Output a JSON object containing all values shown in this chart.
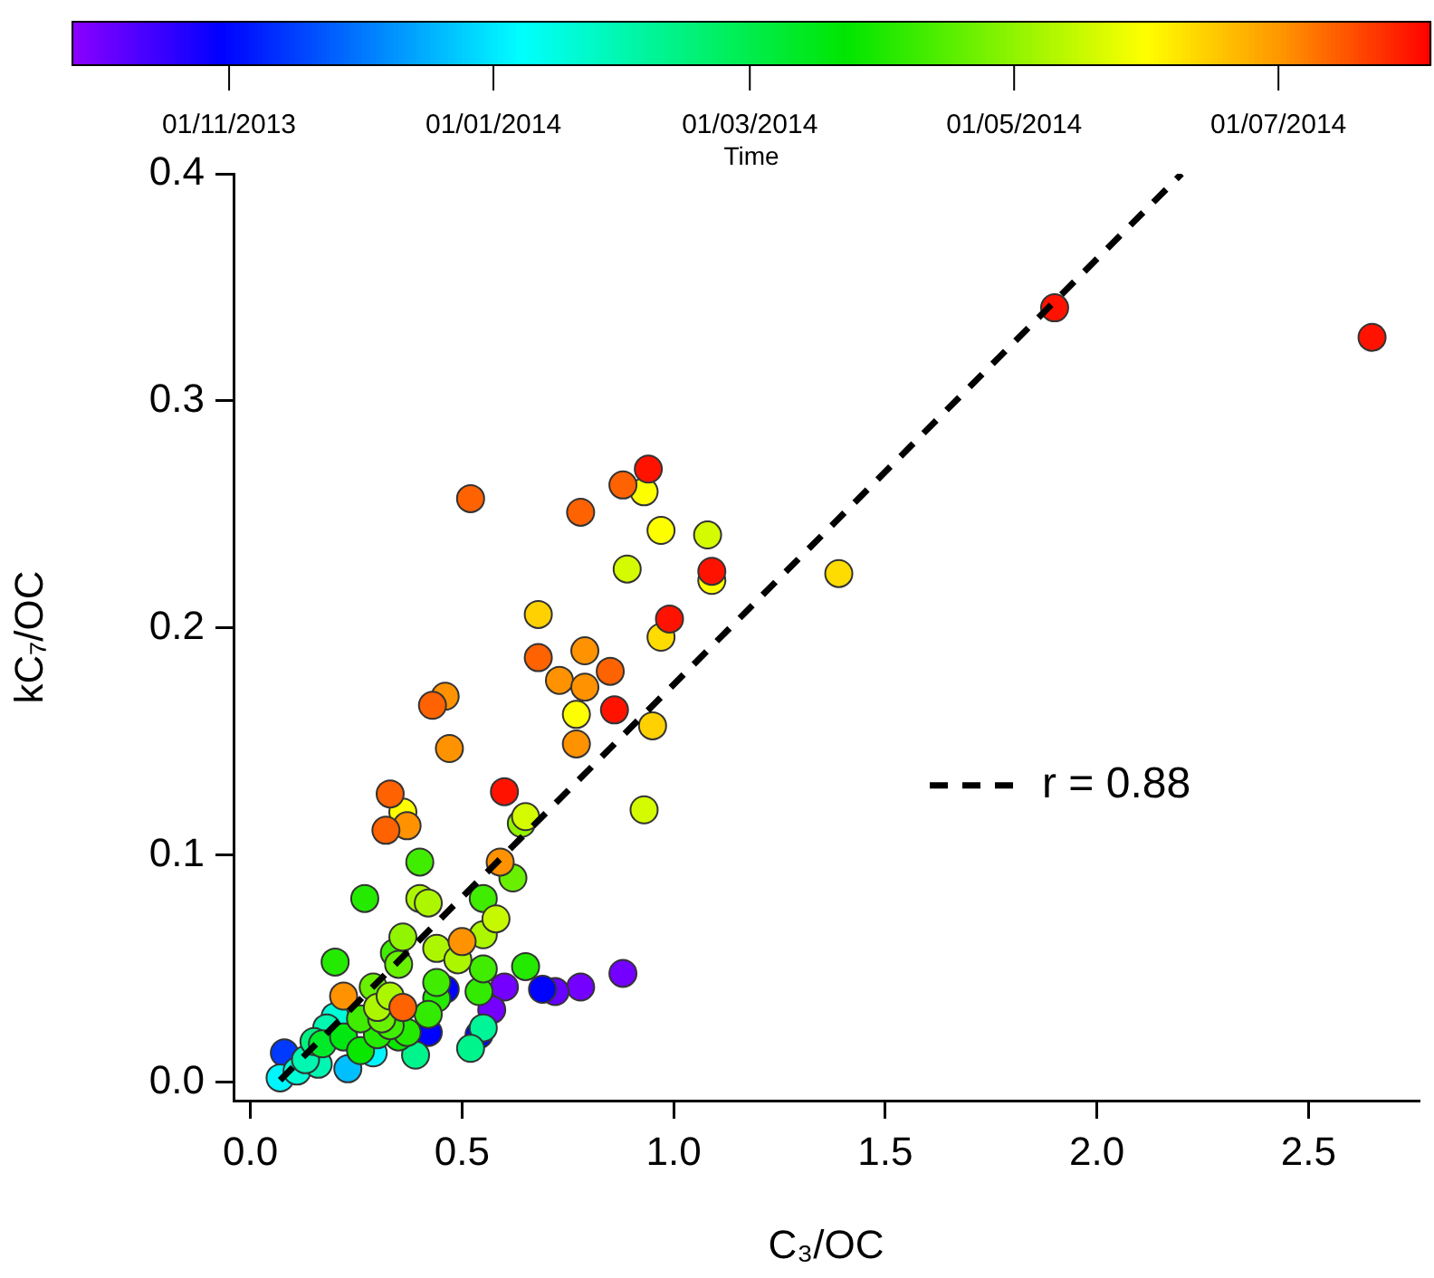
{
  "chart_data": {
    "type": "scatter",
    "xlabel": "C₃/OC",
    "ylabel": "kC₇/OC",
    "clabel": "Time",
    "xlim": [
      -0.04,
      2.76
    ],
    "xticks": [
      {
        "value": 0,
        "label": "0.0"
      },
      0.5,
      {
        "value": 1,
        "label": "1.0"
      },
      1.5,
      {
        "value": 2,
        "label": "2.0"
      },
      2.5
    ],
    "ylim": [
      -0.008,
      0.4
    ],
    "yticks": [
      {
        "value": 0,
        "label": "0.0"
      },
      0.1,
      0.2,
      0.3,
      0.4
    ],
    "clim": [
      2013.734,
      2014.592
    ],
    "cticks": [
      {
        "value": 2013.833,
        "label": "01/11/2013"
      },
      {
        "value": 2014.0,
        "label": "01/01/2014"
      },
      {
        "value": 2014.162,
        "label": "01/03/2014"
      },
      {
        "value": 2014.329,
        "label": "01/05/2014"
      },
      {
        "value": 2014.496,
        "label": "01/07/2014"
      }
    ],
    "grid": false,
    "legend": "right",
    "marker": "circle",
    "series": [
      {
        "x": [
          0.52,
          0.78,
          0.88,
          0.94,
          0.93,
          0.97,
          1.08,
          0.89,
          1.09,
          1.09,
          0.99,
          0.97,
          0.68,
          0.68,
          0.79,
          0.73,
          0.79,
          0.85,
          0.86,
          0.77,
          0.95,
          0.77,
          0.43,
          0.46,
          0.47,
          0.6,
          0.93,
          0.33,
          0.36,
          0.32,
          0.37,
          0.65,
          0.64,
          0.4,
          0.59,
          0.62,
          0.27,
          0.4,
          0.42,
          0.55,
          0.58,
          0.36,
          0.55,
          0.5,
          0.44,
          0.49,
          0.34,
          0.35,
          0.2,
          0.65,
          0.55,
          0.88,
          0.6,
          0.69,
          0.72,
          0.78,
          0.54,
          0.44,
          0.46,
          0.22,
          0.29,
          0.3,
          0.36,
          0.42,
          0.57,
          0.55,
          0.54,
          0.52,
          0.42,
          0.39,
          0.37,
          0.33,
          0.26,
          0.18,
          0.2,
          0.29,
          0.23,
          0.16,
          0.13,
          0.08,
          0.07,
          0.11,
          0.17,
          0.26,
          0.31,
          0.3,
          0.22,
          0.15,
          0.35,
          0.44,
          0.33,
          1.9,
          2.65,
          1.39
        ],
        "values": [
          0.257,
          0.251,
          0.263,
          0.27,
          0.26,
          0.243,
          0.241,
          0.226,
          0.221,
          0.225,
          0.204,
          0.196,
          0.206,
          0.187,
          0.19,
          0.177,
          0.174,
          0.181,
          0.164,
          0.162,
          0.157,
          0.149,
          0.166,
          0.17,
          0.147,
          0.128,
          0.12,
          0.127,
          0.119,
          0.111,
          0.113,
          0.117,
          0.114,
          0.097,
          0.097,
          0.09,
          0.081,
          0.081,
          0.079,
          0.081,
          0.072,
          0.064,
          0.065,
          0.062,
          0.059,
          0.054,
          0.057,
          0.052,
          0.053,
          0.051,
          0.05,
          0.048,
          0.042,
          0.041,
          0.04,
          0.042,
          0.04,
          0.044,
          0.041,
          0.038,
          0.042,
          0.033,
          0.033,
          0.03,
          0.032,
          0.024,
          0.021,
          0.015,
          0.022,
          0.012,
          0.022,
          0.025,
          0.014,
          0.024,
          0.029,
          0.013,
          0.006,
          0.008,
          0.01,
          0.013,
          0.002,
          0.005,
          0.017,
          0.028,
          0.028,
          0.021,
          0.02,
          0.018,
          0.02,
          0.037,
          0.038,
          0.341,
          0.328,
          0.224
        ],
        "colors": [
          "#ff6200",
          "#ff6200",
          "#ff6200",
          "#ff1300",
          "#fdff00",
          "#fdff00",
          "#d4fb00",
          "#d4fb00",
          "#fdff00",
          "#ff1300",
          "#ff1300",
          "#ffdc00",
          "#ffd100",
          "#ff6200",
          "#ff9200",
          "#ff9200",
          "#ff9200",
          "#ff6200",
          "#ff1300",
          "#fdff00",
          "#ffd100",
          "#ff9200",
          "#ff6200",
          "#ff9200",
          "#ff9200",
          "#ff1300",
          "#d4fb00",
          "#ff6200",
          "#fdff00",
          "#ff6200",
          "#ff9200",
          "#d4fb00",
          "#91f400",
          "#40ec00",
          "#ff9200",
          "#68f000",
          "#24ea00",
          "#acf700",
          "#acf700",
          "#40ec00",
          "#c6f900",
          "#91f400",
          "#acf700",
          "#ff9200",
          "#acf700",
          "#acf700",
          "#40ec00",
          "#68f000",
          "#24ea00",
          "#24ea00",
          "#40ec00",
          "#7400ff",
          "#7400ff",
          "#0002ff",
          "#6600ff",
          "#7400ff",
          "#32eb00",
          "#40ec00",
          "#0002ff",
          "#ff9200",
          "#68f000",
          "#acf700",
          "#ff6200",
          "#32eb00",
          "#7400ff",
          "#00f598",
          "#0002ff",
          "#00f48c",
          "#0002ff",
          "#00f48c",
          "#24ea00",
          "#40ec00",
          "#09e700",
          "#00f7b1",
          "#00fbd7",
          "#00f6ff",
          "#00bfff",
          "#00f7b1",
          "#00f7b1",
          "#0039ff",
          "#00f6ff",
          "#00fbd7",
          "#00ea29",
          "#40ec00",
          "#68f000",
          "#24ea00",
          "#00e810",
          "#00f380",
          "#09e700",
          "#24ea00",
          "#acf700",
          "#ff1300",
          "#ff1300",
          "#ffdc00"
        ],
        "cvalues": [
          2014.53,
          2014.53,
          2014.53,
          2014.58,
          2014.41,
          2014.41,
          2014.38,
          2014.38,
          2014.41,
          2014.58,
          2014.58,
          2014.44,
          2014.45,
          2014.53,
          2014.5,
          2014.5,
          2014.5,
          2014.53,
          2014.58,
          2014.41,
          2014.45,
          2014.5,
          2014.53,
          2014.5,
          2014.5,
          2014.58,
          2014.38,
          2014.53,
          2014.41,
          2014.53,
          2014.5,
          2014.38,
          2014.33,
          2014.27,
          2014.5,
          2014.3,
          2014.25,
          2014.35,
          2014.35,
          2014.27,
          2014.37,
          2014.33,
          2014.35,
          2014.5,
          2014.35,
          2014.35,
          2014.27,
          2014.3,
          2014.25,
          2014.25,
          2014.27,
          2013.75,
          2013.75,
          2013.83,
          2013.76,
          2013.75,
          2014.26,
          2014.27,
          2013.83,
          2014.5,
          2014.3,
          2014.35,
          2014.53,
          2014.26,
          2013.75,
          2014.1,
          2013.83,
          2014.11,
          2013.83,
          2014.11,
          2014.25,
          2014.27,
          2014.23,
          2014.08,
          2014.05,
          2014.01,
          2013.97,
          2014.08,
          2014.08,
          2013.87,
          2014.01,
          2014.05,
          2014.19,
          2014.27,
          2014.3,
          2014.25,
          2014.21,
          2014.12,
          2014.23,
          2014.25,
          2014.35,
          2014.58,
          2014.58,
          2014.44
        ]
      },
      {
        "type": "line",
        "name": "r = 0.88",
        "color": "#000000",
        "line_style": "dashed",
        "marker": "none",
        "x": [
          0.07,
          2.2
        ],
        "values": [
          0.001,
          0.4
        ]
      }
    ]
  }
}
